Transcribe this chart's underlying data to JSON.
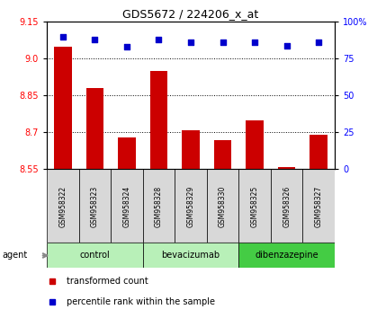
{
  "title": "GDS5672 / 224206_x_at",
  "samples": [
    "GSM958322",
    "GSM958323",
    "GSM958324",
    "GSM958328",
    "GSM958329",
    "GSM958330",
    "GSM958325",
    "GSM958326",
    "GSM958327"
  ],
  "transformed_counts": [
    9.05,
    8.88,
    8.68,
    8.95,
    8.71,
    8.67,
    8.75,
    8.56,
    8.69
  ],
  "percentile_ranks": [
    90,
    88,
    83,
    88,
    86,
    86,
    86,
    84,
    86
  ],
  "groups": [
    {
      "label": "control",
      "start": 0,
      "end": 3,
      "color": "#b8f0b8"
    },
    {
      "label": "bevacizumab",
      "start": 3,
      "end": 6,
      "color": "#b8f0b8"
    },
    {
      "label": "dibenzazepine",
      "start": 6,
      "end": 9,
      "color": "#44cc44"
    }
  ],
  "ylim_left": [
    8.55,
    9.15
  ],
  "ylim_right": [
    0,
    100
  ],
  "yticks_left": [
    8.55,
    8.7,
    8.85,
    9.0,
    9.15
  ],
  "yticks_right": [
    0,
    25,
    50,
    75,
    100
  ],
  "bar_color": "#cc0000",
  "dot_color": "#0000cc",
  "bar_width": 0.55,
  "background_color": "#ffffff",
  "plot_bg_color": "#ffffff",
  "sample_box_color": "#d8d8d8",
  "xlabel": "agent",
  "legend_items": [
    "transformed count",
    "percentile rank within the sample"
  ]
}
